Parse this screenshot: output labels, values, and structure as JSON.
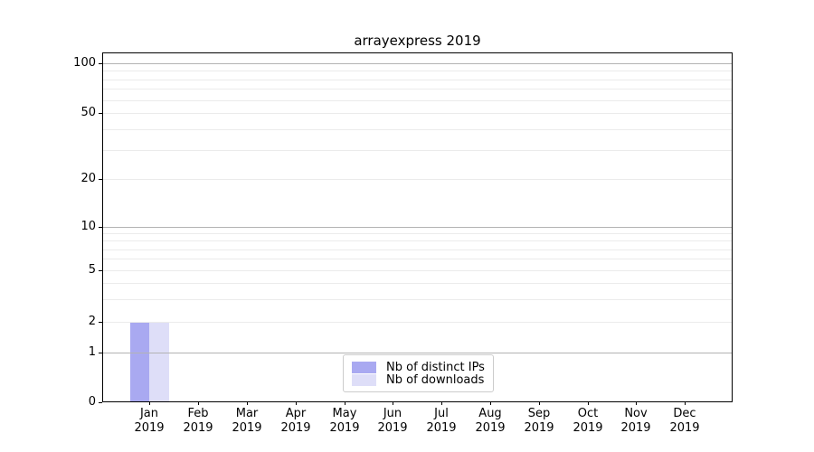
{
  "chart_data": {
    "type": "bar",
    "title": "arrayexpress 2019",
    "categories": [
      {
        "month": "Jan",
        "year": "2019"
      },
      {
        "month": "Feb",
        "year": "2019"
      },
      {
        "month": "Mar",
        "year": "2019"
      },
      {
        "month": "Apr",
        "year": "2019"
      },
      {
        "month": "May",
        "year": "2019"
      },
      {
        "month": "Jun",
        "year": "2019"
      },
      {
        "month": "Jul",
        "year": "2019"
      },
      {
        "month": "Aug",
        "year": "2019"
      },
      {
        "month": "Sep",
        "year": "2019"
      },
      {
        "month": "Oct",
        "year": "2019"
      },
      {
        "month": "Nov",
        "year": "2019"
      },
      {
        "month": "Dec",
        "year": "2019"
      }
    ],
    "series": [
      {
        "name": "Nb of distinct IPs",
        "color": "#a9a9f1",
        "values": [
          2,
          0,
          0,
          0,
          0,
          0,
          0,
          0,
          0,
          0,
          0,
          0
        ]
      },
      {
        "name": "Nb of downloads",
        "color": "#dedef8",
        "values": [
          2,
          0,
          0,
          0,
          0,
          0,
          0,
          0,
          0,
          0,
          0,
          0
        ]
      }
    ],
    "y_axis": {
      "scale": "symlog",
      "tick_values": [
        0,
        1,
        2,
        5,
        10,
        20,
        50,
        100
      ],
      "major_gridlines": [
        1,
        10,
        100
      ],
      "minor_gridlines": [
        2,
        3,
        4,
        5,
        6,
        7,
        8,
        9,
        20,
        30,
        40,
        50,
        60,
        70,
        80,
        90
      ],
      "range_top": 120
    },
    "grid": true,
    "legend_position": "lower center"
  },
  "legend": {
    "items": [
      {
        "label": "Nb of distinct IPs",
        "color": "#a9a9f1"
      },
      {
        "label": "Nb of downloads",
        "color": "#dedef8"
      }
    ]
  },
  "colors": {
    "background": "#ffffff",
    "bar_distinct_ips": "#a9a9f1",
    "bar_downloads": "#dedef8",
    "grid_major": "#b3b3b3",
    "grid_minor": "#ebebeb",
    "axis": "#000000",
    "legend_border": "#cccccc",
    "text": "#000000"
  }
}
